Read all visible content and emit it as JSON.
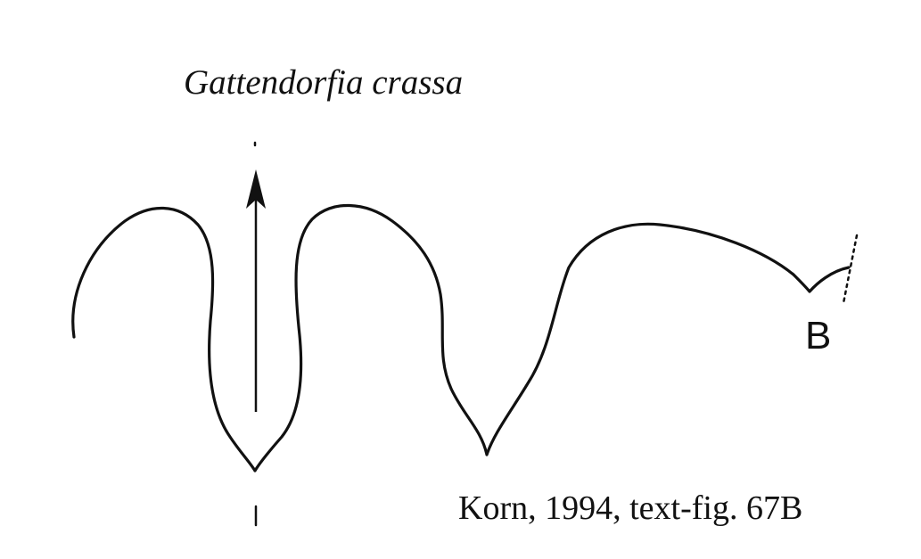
{
  "figure": {
    "title": "Gattendorfia crassa",
    "marker_label": "B",
    "citation": "Korn, 1994, text-fig. 67B",
    "line_color": "#111111"
  }
}
